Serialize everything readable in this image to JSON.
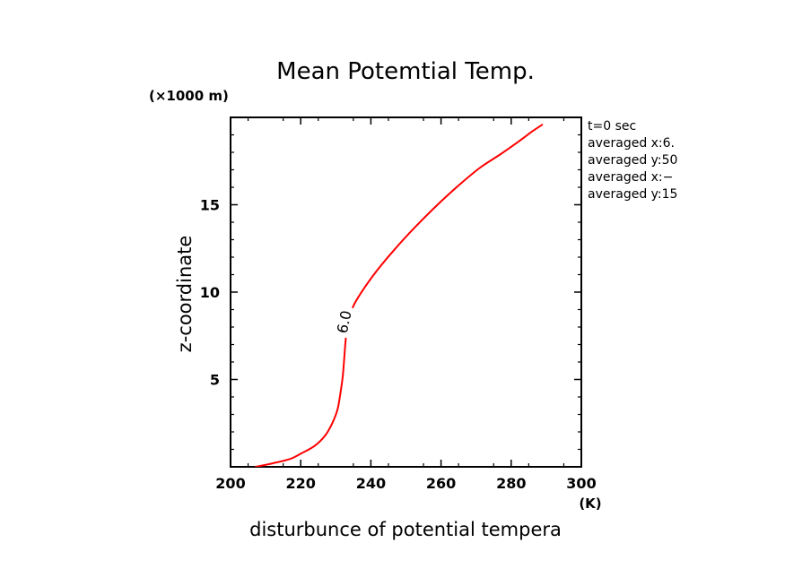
{
  "chart_data": {
    "type": "line",
    "title": "Mean Potemtial Temp.",
    "xlabel": "disturbunce of potential tempera",
    "ylabel": "z-coordinate",
    "x_unit": "(K)",
    "y_unit": "(×1000 m)",
    "xlim": [
      200,
      300
    ],
    "ylim": [
      0,
      20
    ],
    "x_ticks": [
      200,
      220,
      240,
      260,
      280,
      300
    ],
    "x_tick_labels": [
      "200",
      "220",
      "240",
      "260",
      "280",
      "300"
    ],
    "y_ticks": [
      5,
      10,
      15
    ],
    "y_tick_labels": [
      "5",
      "10",
      "15"
    ],
    "grid": false,
    "series": [
      {
        "color": "#ff0000",
        "x": [
          207,
          212,
          217,
          220,
          224,
          227,
          229,
          230.5,
          231.3,
          232,
          232.4,
          232.8,
          233.4,
          235,
          238,
          242,
          247,
          253,
          259,
          265,
          271,
          277,
          282,
          286,
          289
        ],
        "y": [
          0,
          0.2,
          0.45,
          0.75,
          1.2,
          1.8,
          2.5,
          3.3,
          4.2,
          5.2,
          6.2,
          7.2,
          8.2,
          9.2,
          10.2,
          11.3,
          12.5,
          13.8,
          15.0,
          16.1,
          17.1,
          17.9,
          18.6,
          19.2,
          19.6
        ]
      }
    ],
    "contour_label": "6.0",
    "contour_label_at": [
      232.3,
      8.3
    ],
    "annotations": [
      "t=0 sec",
      "averaged  x:6.",
      "averaged  y:50",
      "averaged  x:−",
      "averaged  y:15"
    ]
  }
}
